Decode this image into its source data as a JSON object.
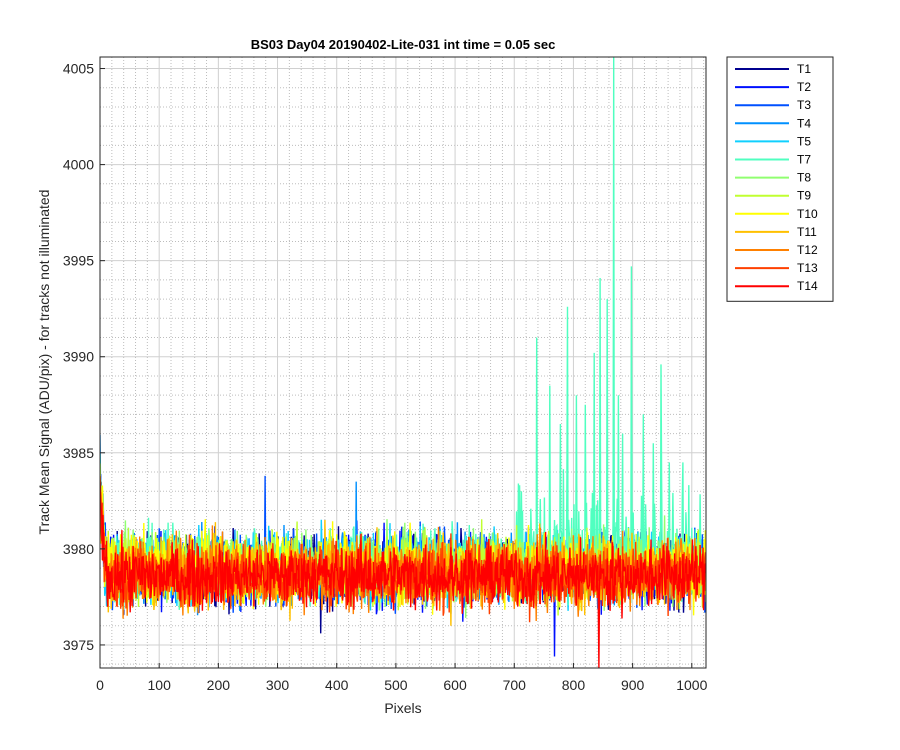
{
  "chart_data": {
    "type": "line",
    "title": "BS03 Day04 20190402-Lite-031 int time = 0.05 sec",
    "xlabel": "Pixels",
    "ylabel": "Track Mean Signal (ADU/pix) - for tracks not illuminated",
    "xlim": [
      0,
      1024
    ],
    "ylim": [
      3973.8,
      4005.6
    ],
    "xticks": [
      0,
      100,
      200,
      300,
      400,
      500,
      600,
      700,
      800,
      900,
      1000
    ],
    "yticks": [
      3975,
      3980,
      3985,
      3990,
      3995,
      4000,
      4005
    ],
    "grid": "on",
    "minor_grid": "on",
    "legend_position": "outside-top-right",
    "series": [
      {
        "name": "T1",
        "color": "#00008f",
        "mean": 3978.9,
        "noise": 1.0,
        "min": 3975.6
      },
      {
        "name": "T2",
        "color": "#0010ff",
        "mean": 3978.9,
        "noise": 1.0,
        "min": 3974.4
      },
      {
        "name": "T3",
        "color": "#0050ff",
        "mean": 3979.0,
        "noise": 1.0,
        "max": 3983.8
      },
      {
        "name": "T4",
        "color": "#0090ff",
        "mean": 3979.0,
        "noise": 1.0,
        "max": 3983.5
      },
      {
        "name": "T5",
        "color": "#10d0ff",
        "mean": 3979.1,
        "noise": 1.0
      },
      {
        "name": "T7",
        "color": "#50ffc0",
        "mean": 3979.2,
        "noise": 1.0,
        "peaks": [
          [
            712,
            3983.0
          ],
          [
            738,
            3991.0
          ],
          [
            760,
            3988.5
          ],
          [
            778,
            3986.5
          ],
          [
            790,
            3992.6
          ],
          [
            805,
            3988.0
          ],
          [
            820,
            3987.5
          ],
          [
            835,
            3990.2
          ],
          [
            845,
            3994.1
          ],
          [
            857,
            3993.0
          ],
          [
            868,
            4005.6
          ],
          [
            876,
            3988.0
          ],
          [
            883,
            3986.0
          ],
          [
            898,
            3994.7
          ],
          [
            918,
            3987.0
          ],
          [
            935,
            3985.5
          ],
          [
            948,
            3989.6
          ],
          [
            962,
            3984.5
          ],
          [
            985,
            3984.5
          ]
        ]
      },
      {
        "name": "T8",
        "color": "#90ff70",
        "mean": 3979.1,
        "noise": 1.0
      },
      {
        "name": "T9",
        "color": "#c0ff30",
        "mean": 3979.0,
        "noise": 1.0
      },
      {
        "name": "T10",
        "color": "#ffff00",
        "mean": 3979.0,
        "noise": 1.0
      },
      {
        "name": "T11",
        "color": "#ffc000",
        "mean": 3978.8,
        "noise": 1.0
      },
      {
        "name": "T12",
        "color": "#ff8000",
        "mean": 3978.7,
        "noise": 1.0
      },
      {
        "name": "T13",
        "color": "#ff4000",
        "mean": 3978.6,
        "noise": 0.9
      },
      {
        "name": "T14",
        "color": "#ff0000",
        "mean": 3978.6,
        "noise": 0.9,
        "min": 3973.8
      }
    ]
  }
}
